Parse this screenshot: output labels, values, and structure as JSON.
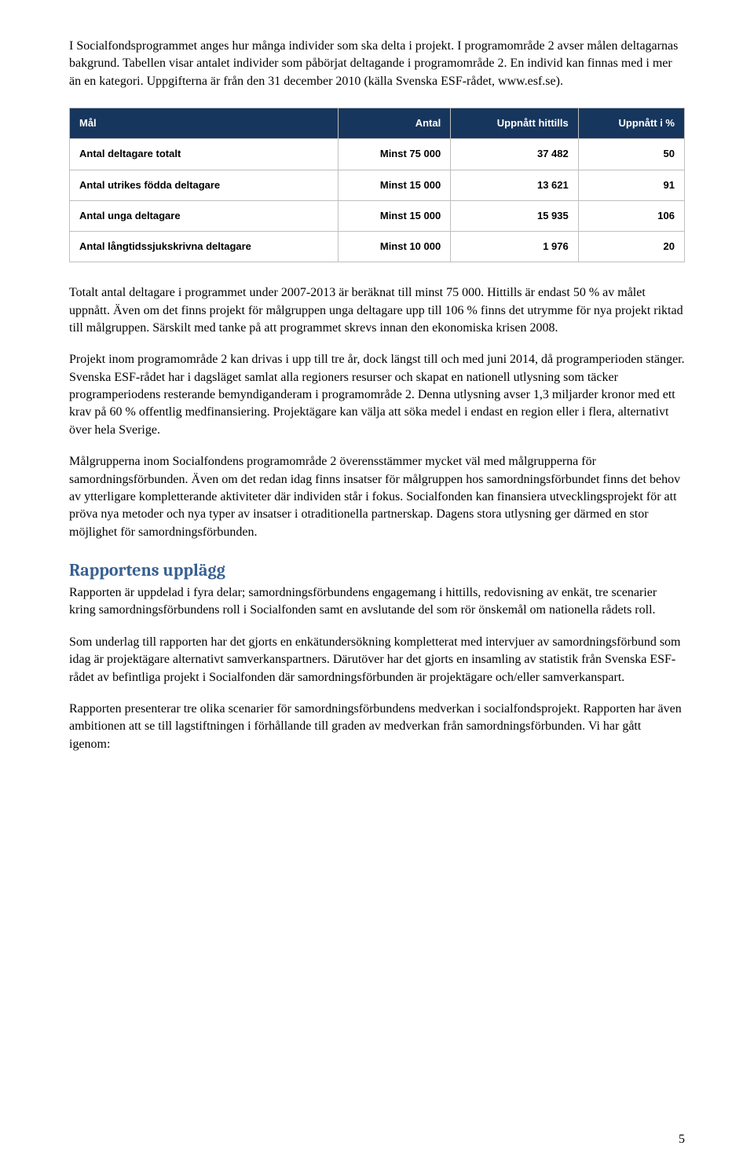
{
  "intro_paragraph": "I Socialfondsprogrammet anges hur många individer som ska delta i projekt. I programområde 2 avser målen deltagarnas bakgrund. Tabellen visar antalet individer som påbörjat deltagande i programområde 2. En individ kan finnas med i mer än en kategori. Uppgifterna är från den 31 december 2010 (källa Svenska ESF-rådet, www.esf.se).",
  "table": {
    "type": "table",
    "header_bg": "#17365d",
    "header_color": "#ffffff",
    "cell_bg": "#ffffff",
    "cell_color": "#000000",
    "border_color": "#bfbfbf",
    "font_family": "Verdana",
    "font_size_pt": 10,
    "font_weight": "bold",
    "columns": [
      {
        "key": "mal",
        "label": "Mål",
        "align": "left"
      },
      {
        "key": "antal",
        "label": "Antal",
        "align": "right"
      },
      {
        "key": "hittills",
        "label": "Uppnått hittills",
        "align": "right"
      },
      {
        "key": "procent",
        "label": "Uppnått i %",
        "align": "right"
      }
    ],
    "rows": [
      {
        "mal": "Antal deltagare totalt",
        "antal": "Minst 75 000",
        "hittills": "37 482",
        "procent": "50"
      },
      {
        "mal": "Antal utrikes födda deltagare",
        "antal": "Minst 15 000",
        "hittills": "13 621",
        "procent": "91"
      },
      {
        "mal": "Antal unga deltagare",
        "antal": "Minst 15 000",
        "hittills": "15 935",
        "procent": "106"
      },
      {
        "mal": "Antal långtidssjukskrivna deltagare",
        "antal": "Minst 10 000",
        "hittills": "1 976",
        "procent": "20"
      }
    ]
  },
  "body_paragraphs": [
    "Totalt antal deltagare i programmet under 2007-2013 är beräknat till minst 75 000. Hittills är endast 50 % av målet uppnått. Även om det finns projekt för målgruppen unga deltagare upp till 106 % finns det utrymme för nya projekt riktad till målgruppen. Särskilt med tanke på att programmet skrevs innan den ekonomiska krisen 2008.",
    "Projekt inom programområde 2 kan drivas i upp till tre år, dock längst till och med juni 2014, då programperioden stänger. Svenska ESF-rådet har i dagsläget samlat alla regioners resurser och skapat en nationell utlysning som täcker programperiodens resterande bemyndiganderam i programområde 2. Denna utlysning avser 1,3 miljarder kronor med ett krav på 60 % offentlig medfinansiering. Projektägare kan välja att söka medel i endast en region eller i flera, alternativt över hela Sverige.",
    "Målgrupperna inom Socialfondens programområde 2 överensstämmer mycket väl med målgrupperna för samordningsförbunden. Även om det redan idag finns insatser för målgruppen hos samordningsförbundet finns det behov av ytterligare kompletterande aktiviteter där individen står i fokus. Socialfonden kan finansiera utvecklingsprojekt för att pröva nya metoder och nya typer av insatser i otraditionella partnerskap. Dagens stora utlysning ger därmed en stor möjlighet för samordningsförbunden."
  ],
  "section_heading": "Rapportens upplägg",
  "section_paragraphs": [
    "Rapporten är uppdelad i fyra delar; samordningsförbundens engagemang i hittills, redovisning av enkät, tre scenarier kring samordningsförbundens roll i Socialfonden samt en avslutande del som rör önskemål om nationella rådets roll.",
    "Som underlag till rapporten har det gjorts en enkätundersökning kompletterat med intervjuer av samordningsförbund som idag är projektägare alternativt samverkanspartners. Därutöver har det gjorts en insamling av statistik från Svenska ESF-rådet av befintliga projekt i Socialfonden där samordningsförbunden är projektägare och/eller samverkanspart.",
    "Rapporten presenterar tre olika scenarier för samordningsförbundens medverkan i socialfondsprojekt. Rapporten har även ambitionen att se till lagstiftningen i förhållande till graden av medverkan från samordningsförbunden. Vi har gått igenom:"
  ],
  "page_number": "5",
  "heading_color": "#365f91"
}
